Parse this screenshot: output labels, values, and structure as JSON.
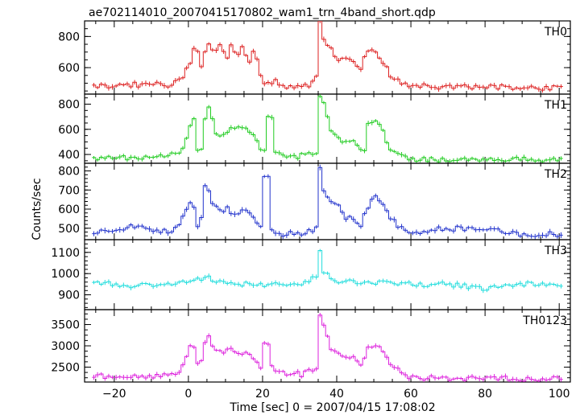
{
  "chart_data": {
    "type": "line",
    "title": "ae702114010_20070415170802_wam1_trn_4band_short.qdp",
    "xlabel": "Time [sec] 0 = 2007/04/15 17:08:02",
    "ylabel": "Counts/sec",
    "xlim": [
      -28,
      103
    ],
    "x_ticks": [
      -20,
      0,
      20,
      40,
      60,
      80,
      100
    ],
    "x_tick_labels": [
      "−20",
      "0",
      "20",
      "40",
      "60",
      "80",
      "100"
    ],
    "bin_width": 1,
    "panels": [
      {
        "name": "TH0",
        "color": "#dd2222",
        "ylim": [
          430,
          900
        ],
        "yticks": [
          600,
          800
        ],
        "ytick_labels": [
          "600",
          "800"
        ],
        "control": [
          [
            -26,
            480
          ],
          [
            -15,
            490
          ],
          [
            -5,
            490
          ],
          [
            -3,
            530
          ],
          [
            -2,
            550
          ],
          [
            0,
            640
          ],
          [
            1,
            740
          ],
          [
            2,
            690
          ],
          [
            3,
            620
          ],
          [
            4,
            700
          ],
          [
            5,
            760
          ],
          [
            6,
            720
          ],
          [
            7,
            700
          ],
          [
            8,
            740
          ],
          [
            9,
            690
          ],
          [
            10,
            650
          ],
          [
            11,
            730
          ],
          [
            12,
            700
          ],
          [
            13,
            690
          ],
          [
            14,
            740
          ],
          [
            15,
            680
          ],
          [
            16,
            620
          ],
          [
            17,
            700
          ],
          [
            18,
            660
          ],
          [
            19,
            560
          ],
          [
            20,
            480
          ],
          [
            23,
            520
          ],
          [
            26,
            470
          ],
          [
            32,
            480
          ],
          [
            34,
            560
          ],
          [
            35,
            900
          ],
          [
            36,
            780
          ],
          [
            37,
            750
          ],
          [
            40,
            650
          ],
          [
            44,
            640
          ],
          [
            46,
            600
          ],
          [
            48,
            720
          ],
          [
            50,
            700
          ],
          [
            52,
            640
          ],
          [
            54,
            540
          ],
          [
            58,
            490
          ],
          [
            60,
            480
          ],
          [
            100,
            470
          ]
        ],
        "xs": []
      },
      {
        "name": "TH1",
        "color": "#22cc22",
        "ylim": [
          330,
          880
        ],
        "yticks": [
          400,
          600,
          800
        ],
        "ytick_labels": [
          "400",
          "600",
          "800"
        ],
        "control": [
          [
            -26,
            370
          ],
          [
            -10,
            380
          ],
          [
            -4,
            400
          ],
          [
            -2,
            440
          ],
          [
            0,
            640
          ],
          [
            1,
            700
          ],
          [
            2,
            420
          ],
          [
            3,
            430
          ],
          [
            4,
            700
          ],
          [
            5,
            760
          ],
          [
            6,
            700
          ],
          [
            7,
            560
          ],
          [
            9,
            560
          ],
          [
            11,
            620
          ],
          [
            13,
            630
          ],
          [
            15,
            610
          ],
          [
            17,
            540
          ],
          [
            19,
            450
          ],
          [
            20,
            420
          ],
          [
            21,
            720
          ],
          [
            22,
            680
          ],
          [
            23,
            430
          ],
          [
            25,
            400
          ],
          [
            28,
            380
          ],
          [
            32,
            400
          ],
          [
            34,
            420
          ],
          [
            35,
            870
          ],
          [
            36,
            820
          ],
          [
            38,
            600
          ],
          [
            40,
            520
          ],
          [
            42,
            510
          ],
          [
            44,
            500
          ],
          [
            46,
            440
          ],
          [
            47,
            420
          ],
          [
            48,
            640
          ],
          [
            50,
            680
          ],
          [
            52,
            580
          ],
          [
            54,
            440
          ],
          [
            58,
            370
          ],
          [
            60,
            360
          ],
          [
            100,
            360
          ]
        ],
        "xs": []
      },
      {
        "name": "TH2",
        "color": "#2233cc",
        "ylim": [
          440,
          840
        ],
        "yticks": [
          500,
          600,
          700,
          800
        ],
        "ytick_labels": [
          "500",
          "600",
          "700",
          "800"
        ],
        "control": [
          [
            -26,
            470
          ],
          [
            -15,
            510
          ],
          [
            -5,
            480
          ],
          [
            -3,
            530
          ],
          [
            0,
            640
          ],
          [
            1,
            620
          ],
          [
            2,
            520
          ],
          [
            3,
            560
          ],
          [
            4,
            720
          ],
          [
            5,
            700
          ],
          [
            6,
            640
          ],
          [
            8,
            590
          ],
          [
            10,
            610
          ],
          [
            12,
            560
          ],
          [
            14,
            600
          ],
          [
            16,
            580
          ],
          [
            18,
            530
          ],
          [
            19,
            500
          ],
          [
            20,
            780
          ],
          [
            21,
            760
          ],
          [
            22,
            500
          ],
          [
            24,
            470
          ],
          [
            30,
            470
          ],
          [
            34,
            500
          ],
          [
            35,
            830
          ],
          [
            36,
            700
          ],
          [
            38,
            640
          ],
          [
            40,
            620
          ],
          [
            42,
            560
          ],
          [
            44,
            540
          ],
          [
            46,
            520
          ],
          [
            48,
            610
          ],
          [
            50,
            680
          ],
          [
            52,
            620
          ],
          [
            54,
            560
          ],
          [
            56,
            510
          ],
          [
            60,
            480
          ],
          [
            70,
            500
          ],
          [
            80,
            490
          ],
          [
            90,
            470
          ],
          [
            100,
            470
          ]
        ],
        "xs": []
      },
      {
        "name": "TH3",
        "color": "#22dddd",
        "ylim": [
          830,
          1160
        ],
        "yticks": [
          900,
          1000,
          1100
        ],
        "ytick_labels": [
          "900",
          "1000",
          "1100"
        ],
        "control": [
          [
            -26,
            960
          ],
          [
            -15,
            940
          ],
          [
            -5,
            950
          ],
          [
            0,
            960
          ],
          [
            5,
            980
          ],
          [
            10,
            950
          ],
          [
            20,
            950
          ],
          [
            30,
            950
          ],
          [
            34,
            990
          ],
          [
            35,
            1120
          ],
          [
            36,
            1010
          ],
          [
            40,
            960
          ],
          [
            50,
            960
          ],
          [
            60,
            950
          ],
          [
            70,
            950
          ],
          [
            80,
            930
          ],
          [
            90,
            950
          ],
          [
            100,
            940
          ]
        ],
        "xs": []
      },
      {
        "name": "TH0123",
        "color": "#dd22dd",
        "ylim": [
          2150,
          3850
        ],
        "yticks": [
          2500,
          3000,
          3500
        ],
        "ytick_labels": [
          "2500",
          "3000",
          "3500"
        ],
        "control": [
          [
            -26,
            2280
          ],
          [
            -15,
            2290
          ],
          [
            -5,
            2290
          ],
          [
            -3,
            2400
          ],
          [
            0,
            2950
          ],
          [
            1,
            3000
          ],
          [
            2,
            2550
          ],
          [
            3,
            2600
          ],
          [
            4,
            3100
          ],
          [
            5,
            3250
          ],
          [
            6,
            3050
          ],
          [
            8,
            2850
          ],
          [
            10,
            2900
          ],
          [
            14,
            2850
          ],
          [
            16,
            2780
          ],
          [
            18,
            2600
          ],
          [
            19,
            2450
          ],
          [
            20,
            3050
          ],
          [
            21,
            3000
          ],
          [
            22,
            2500
          ],
          [
            24,
            2380
          ],
          [
            30,
            2330
          ],
          [
            34,
            2450
          ],
          [
            35,
            3750
          ],
          [
            36,
            3500
          ],
          [
            38,
            2900
          ],
          [
            40,
            2800
          ],
          [
            44,
            2700
          ],
          [
            46,
            2550
          ],
          [
            48,
            2950
          ],
          [
            50,
            3050
          ],
          [
            52,
            2900
          ],
          [
            54,
            2600
          ],
          [
            58,
            2300
          ],
          [
            60,
            2250
          ],
          [
            100,
            2220
          ]
        ],
        "xs": []
      }
    ]
  }
}
